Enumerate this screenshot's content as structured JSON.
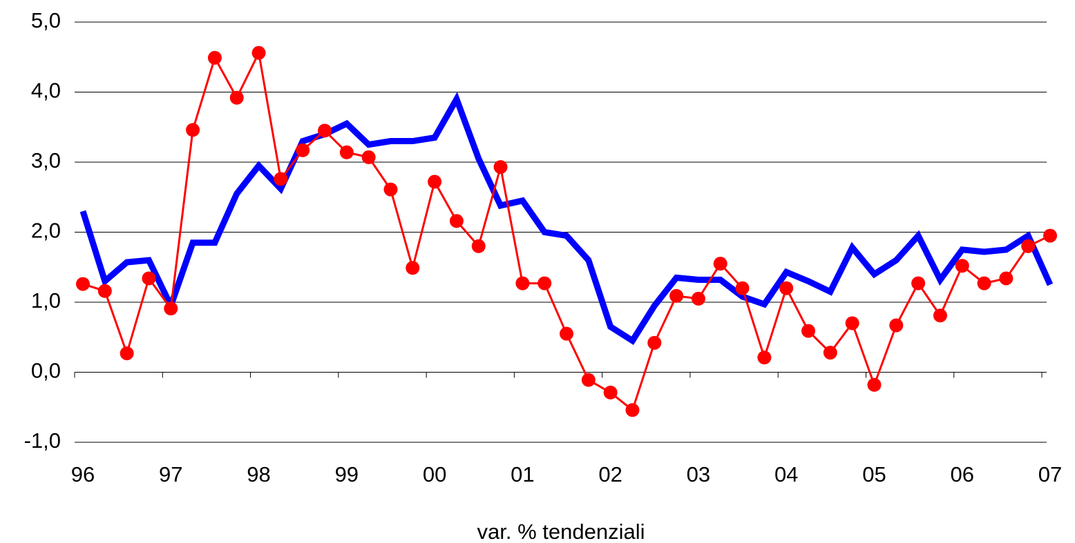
{
  "chart_data": {
    "type": "line",
    "xlabel": "var. % tendenziali",
    "x": [
      0,
      1,
      2,
      3,
      4,
      5,
      6,
      7,
      8,
      9,
      10,
      11,
      12,
      13,
      14,
      15,
      16,
      17,
      18,
      19,
      20,
      21,
      22,
      23,
      24,
      25,
      26,
      27,
      28,
      29,
      30,
      31,
      32,
      33,
      34,
      35,
      36,
      37,
      38,
      39,
      40,
      41,
      42,
      43,
      44
    ],
    "xlim": [
      0,
      44
    ],
    "xticks": [
      {
        "value": 0,
        "label": "96"
      },
      {
        "value": 4,
        "label": "97"
      },
      {
        "value": 8,
        "label": "98"
      },
      {
        "value": 12,
        "label": "99"
      },
      {
        "value": 16,
        "label": "00"
      },
      {
        "value": 20,
        "label": "01"
      },
      {
        "value": 24,
        "label": "02"
      },
      {
        "value": 28,
        "label": "03"
      },
      {
        "value": 32,
        "label": "04"
      },
      {
        "value": 36,
        "label": "05"
      },
      {
        "value": 40,
        "label": "06"
      },
      {
        "value": 44,
        "label": "07"
      }
    ],
    "ylim": [
      -1,
      5
    ],
    "yticks": [
      {
        "value": -1,
        "label": "-1,0"
      },
      {
        "value": 0,
        "label": "0,0"
      },
      {
        "value": 1,
        "label": "1,0"
      },
      {
        "value": 2,
        "label": "2,0"
      },
      {
        "value": 3,
        "label": "3,0"
      },
      {
        "value": 4,
        "label": "4,0"
      },
      {
        "value": 5,
        "label": "5,0"
      }
    ],
    "grid": true,
    "series": [
      {
        "color": "#0000ff",
        "markers": false,
        "values": [
          2.3,
          1.3,
          1.57,
          1.6,
          0.95,
          1.85,
          1.85,
          2.55,
          2.95,
          2.62,
          3.3,
          3.4,
          3.55,
          3.25,
          3.3,
          3.3,
          3.35,
          3.9,
          3.05,
          2.38,
          2.45,
          2.0,
          1.95,
          1.6,
          0.65,
          0.45,
          0.95,
          1.35,
          1.32,
          1.32,
          1.08,
          0.97,
          1.43,
          1.3,
          1.15,
          1.78,
          1.4,
          1.6,
          1.95,
          1.32,
          1.75,
          1.72,
          1.75,
          1.95,
          1.25
        ]
      },
      {
        "color": "#ff0000",
        "markers": true,
        "values": [
          1.26,
          1.16,
          0.27,
          1.34,
          0.91,
          3.46,
          4.49,
          3.92,
          4.56,
          2.76,
          3.17,
          3.45,
          3.14,
          3.07,
          2.61,
          1.49,
          2.72,
          2.16,
          1.8,
          2.93,
          1.27,
          1.27,
          0.55,
          -0.11,
          -0.29,
          -0.54,
          0.42,
          1.09,
          1.05,
          1.55,
          1.2,
          0.21,
          1.2,
          0.59,
          0.28,
          0.7,
          -0.18,
          0.67,
          1.27,
          0.81,
          1.52,
          1.27,
          1.34,
          1.8,
          1.95
        ]
      }
    ]
  }
}
